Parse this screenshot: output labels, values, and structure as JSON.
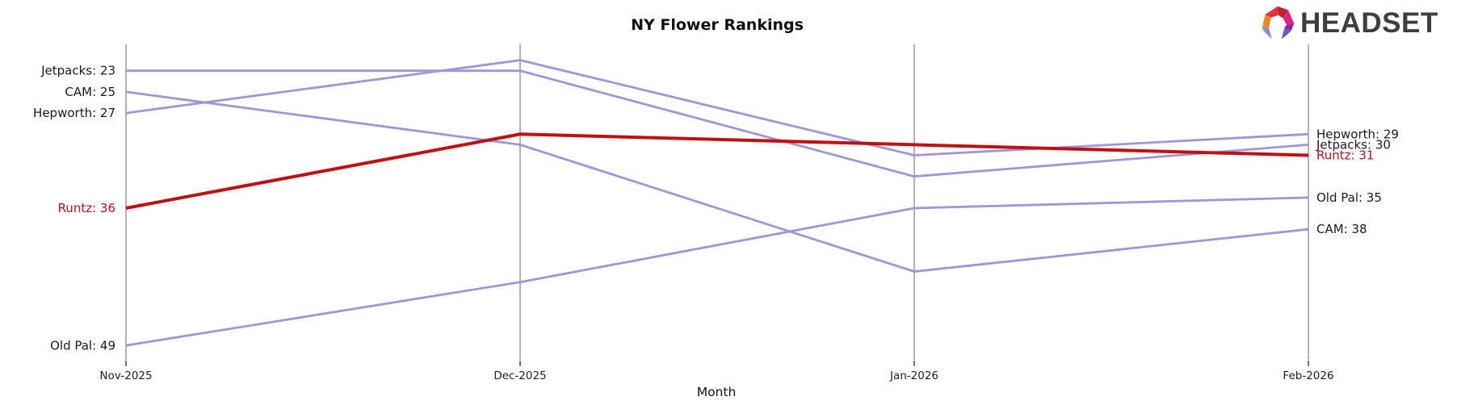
{
  "title": "NY Flower Rankings",
  "x_axis_label": "Month",
  "logo": {
    "text": "HEADSET"
  },
  "chart_data": {
    "type": "line",
    "subtype": "bump-ranking-chart",
    "title": "NY Flower Rankings",
    "xlabel": "Month",
    "x": [
      "Nov-2025",
      "Dec-2025",
      "Jan-2026",
      "Feb-2026"
    ],
    "series": [
      {
        "name": "Jetpacks",
        "values": [
          23,
          23,
          33,
          30
        ],
        "highlight": false
      },
      {
        "name": "CAM",
        "values": [
          25,
          30,
          42,
          38
        ],
        "highlight": false
      },
      {
        "name": "Hepworth",
        "values": [
          27,
          22,
          31,
          29
        ],
        "highlight": false
      },
      {
        "name": "Runtz",
        "values": [
          36,
          29,
          30,
          31
        ],
        "highlight": true
      },
      {
        "name": "Old Pal",
        "values": [
          49,
          43,
          36,
          35
        ],
        "highlight": false
      }
    ],
    "label_format": "{name}: {value}",
    "y_inverted": true,
    "ylim": [
      22,
      49
    ],
    "grid": "vertical-month-axes-only",
    "legend_position": "inline-line-endpoints",
    "colors": {
      "line_default": "#a294d9",
      "line_highlight": "#c01012",
      "label_default": "#1a1a1a",
      "label_highlight": "#b51414",
      "axis_line": "#b3b3b3",
      "tick": "#333333",
      "tick_label": "#222222"
    }
  }
}
